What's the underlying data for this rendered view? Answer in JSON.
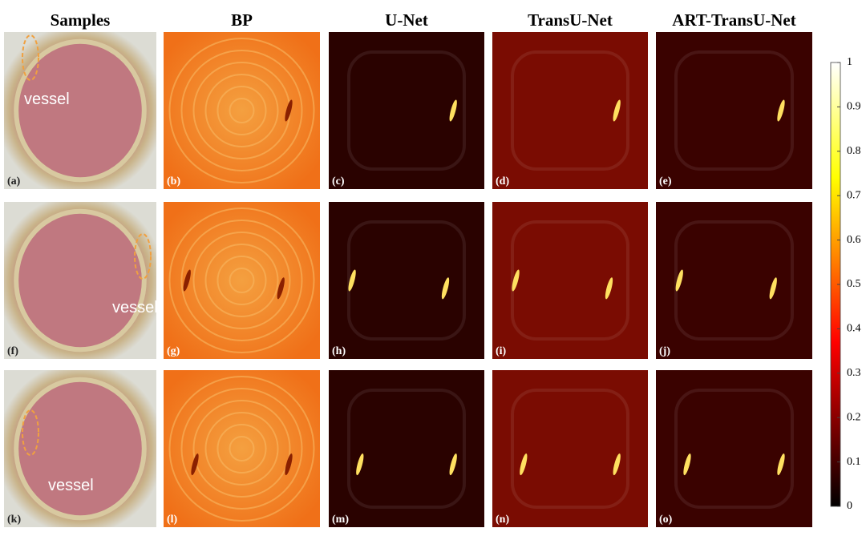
{
  "headers": [
    "Samples",
    "BP",
    "U-Net",
    "TransU-Net",
    "ART-TransU-Net"
  ],
  "panels": [
    [
      "(a)",
      "(b)",
      "(c)",
      "(d)",
      "(e)"
    ],
    [
      "(f)",
      "(g)",
      "(h)",
      "(i)",
      "(j)"
    ],
    [
      "(k)",
      "(l)",
      "(m)",
      "(n)",
      "(o)"
    ]
  ],
  "annotations": [
    "vessel",
    "vessel",
    "vessel"
  ],
  "colorbar": {
    "lim": [
      0,
      1
    ],
    "ticks": [
      0,
      0.1,
      0.2,
      0.3,
      0.4,
      0.5,
      0.6,
      0.7,
      0.8,
      0.9,
      1
    ]
  }
}
